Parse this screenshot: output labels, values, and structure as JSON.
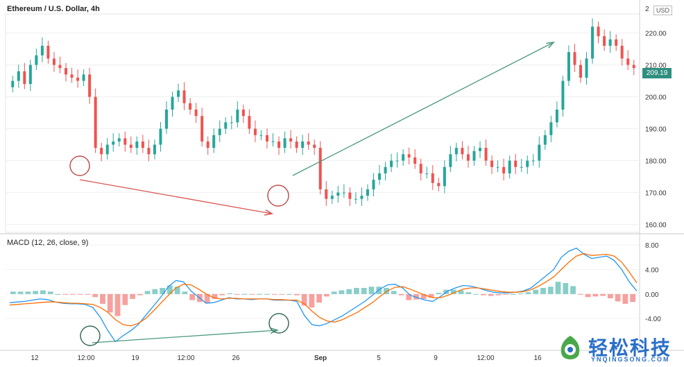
{
  "chart_data": {
    "type": "candlestick",
    "title": "Ethereum / U.S. Dollar, 4h",
    "currency_label": "USD",
    "last_price_label": "209.19",
    "last_price": 209.19,
    "price_axis": {
      "ticks": [
        "160.00",
        "170.00",
        "180.00",
        "190.00",
        "200.00",
        "210.00",
        "220.00"
      ],
      "range": [
        157.5,
        226
      ],
      "partial_top_label": "2"
    },
    "indicator": {
      "title": "MACD (12, 26, close, 9)",
      "ticks": [
        "-4.00",
        "0.00",
        "4.00",
        "8.00"
      ],
      "range": [
        -9.2,
        9.5
      ]
    },
    "x_axis": {
      "labels": [
        "12",
        "12:00",
        "19",
        "12:00",
        "26",
        "Sep",
        "5",
        "9",
        "12:00",
        "16"
      ]
    },
    "series": [
      {
        "name": "price",
        "values": [
          205,
          208,
          204,
          210,
          213,
          216,
          212,
          210,
          209,
          207,
          206,
          205,
          207,
          200,
          184,
          182,
          185,
          186,
          187,
          185,
          184,
          186,
          184,
          182,
          185,
          190,
          196,
          200,
          202,
          198,
          196,
          194,
          186,
          184,
          188,
          190,
          192,
          192,
          196,
          194,
          190,
          188,
          188,
          186,
          186,
          184,
          187,
          186,
          184,
          186,
          185,
          184,
          171,
          168,
          169,
          170,
          170,
          168,
          168,
          169,
          171,
          174,
          176,
          178,
          180,
          180,
          182,
          181,
          179,
          176,
          176,
          173,
          172,
          178,
          182,
          184,
          182,
          180,
          183,
          184,
          180,
          178,
          178,
          176,
          180,
          178,
          178,
          180,
          180,
          185,
          188,
          192,
          196,
          205,
          214,
          210,
          206,
          212,
          222,
          219,
          216,
          218,
          216,
          212,
          210,
          209
        ]
      },
      {
        "name": "MACD",
        "values": [
          -1.4,
          -1.3,
          -1.2,
          -1.0,
          -0.8,
          -0.9,
          -1.3,
          -1.5,
          -1.6,
          -1.6,
          -1.7,
          -2.2,
          -3.8,
          -6.0,
          -7.8,
          -6.8,
          -6.0,
          -5.0,
          -3.5,
          -2.0,
          -0.5,
          1.2,
          2.2,
          2.0,
          0.5,
          -0.5,
          -1.5,
          -1.4,
          -1.0,
          -0.6,
          -0.8,
          -0.8,
          -0.9,
          -0.8,
          -0.8,
          -1.0,
          -1.0,
          -1.0,
          -1.2,
          -3.5,
          -5.0,
          -5.2,
          -4.8,
          -4.2,
          -3.6,
          -2.8,
          -2.0,
          -1.2,
          -0.2,
          0.8,
          1.5,
          1.6,
          1.0,
          -0.2,
          -0.6,
          -1.0,
          -1.2,
          -0.4,
          0.5,
          1.0,
          1.4,
          1.3,
          1.0,
          0.6,
          0.3,
          0.2,
          0.2,
          0.3,
          0.5,
          1.0,
          2.0,
          3.0,
          4.0,
          6.0,
          7.0,
          7.5,
          6.5,
          5.8,
          6.0,
          6.2,
          5.5,
          4.0,
          2.0,
          0.5
        ]
      },
      {
        "name": "Signal",
        "values": [
          -1.8,
          -1.7,
          -1.6,
          -1.5,
          -1.4,
          -1.3,
          -1.3,
          -1.4,
          -1.5,
          -1.5,
          -1.6,
          -1.7,
          -2.2,
          -3.0,
          -4.2,
          -5.0,
          -5.2,
          -4.8,
          -4.0,
          -2.8,
          -1.5,
          -0.2,
          1.0,
          1.6,
          1.5,
          0.8,
          0.0,
          -0.6,
          -0.8,
          -0.7,
          -0.7,
          -0.8,
          -0.8,
          -0.8,
          -0.8,
          -0.9,
          -0.9,
          -1.0,
          -1.0,
          -1.6,
          -2.8,
          -3.8,
          -4.4,
          -4.6,
          -4.2,
          -3.6,
          -3.0,
          -2.2,
          -1.4,
          -0.4,
          0.5,
          1.1,
          1.2,
          0.8,
          0.3,
          -0.2,
          -0.6,
          -0.6,
          -0.2,
          0.3,
          0.8,
          1.0,
          1.0,
          0.8,
          0.6,
          0.4,
          0.3,
          0.3,
          0.4,
          0.7,
          1.3,
          2.0,
          2.8,
          4.0,
          5.2,
          6.2,
          6.6,
          6.3,
          6.4,
          6.5,
          6.2,
          5.2,
          3.6,
          1.8
        ]
      },
      {
        "name": "Histogram",
        "values": [
          0.4,
          0.4,
          0.4,
          0.5,
          0.6,
          0.4,
          0.0,
          -0.1,
          -0.1,
          -0.1,
          -0.1,
          -0.5,
          -1.6,
          -3.0,
          -3.6,
          -1.8,
          -0.8,
          -0.2,
          0.5,
          0.8,
          1.0,
          1.4,
          1.2,
          0.4,
          -1.0,
          -1.3,
          -1.5,
          -0.8,
          -0.2,
          0.1,
          -0.1,
          0.0,
          -0.1,
          0.0,
          0.0,
          -0.1,
          -0.1,
          0.0,
          -0.2,
          -1.9,
          -2.2,
          -1.4,
          -0.4,
          0.4,
          0.6,
          0.8,
          1.0,
          1.0,
          1.2,
          1.2,
          1.0,
          0.5,
          -0.2,
          -1.0,
          -0.9,
          -0.8,
          -0.6,
          0.2,
          0.7,
          0.7,
          0.6,
          0.3,
          0.0,
          -0.2,
          -0.3,
          -0.2,
          -0.1,
          0.0,
          0.1,
          0.3,
          0.7,
          1.0,
          1.2,
          2.0,
          1.8,
          1.3,
          -0.1,
          -0.5,
          -0.4,
          -0.3,
          -0.7,
          -1.2,
          -1.6,
          -1.3
        ]
      }
    ],
    "annotations": [
      "price divergence down arrow",
      "price trend up arrow",
      "macd divergence up arrow",
      "circled lows"
    ],
    "colors": {
      "up": "#26a69a",
      "down": "#ef5350",
      "macd": "#2196f3",
      "signal": "#ff6d00",
      "arrow_red": "#d9534f",
      "arrow_green": "#4a9a7a",
      "badge": "#2f8f7f"
    }
  },
  "watermark": {
    "main": "轻松科技",
    "sub": "YNQINGSONG.COM"
  }
}
